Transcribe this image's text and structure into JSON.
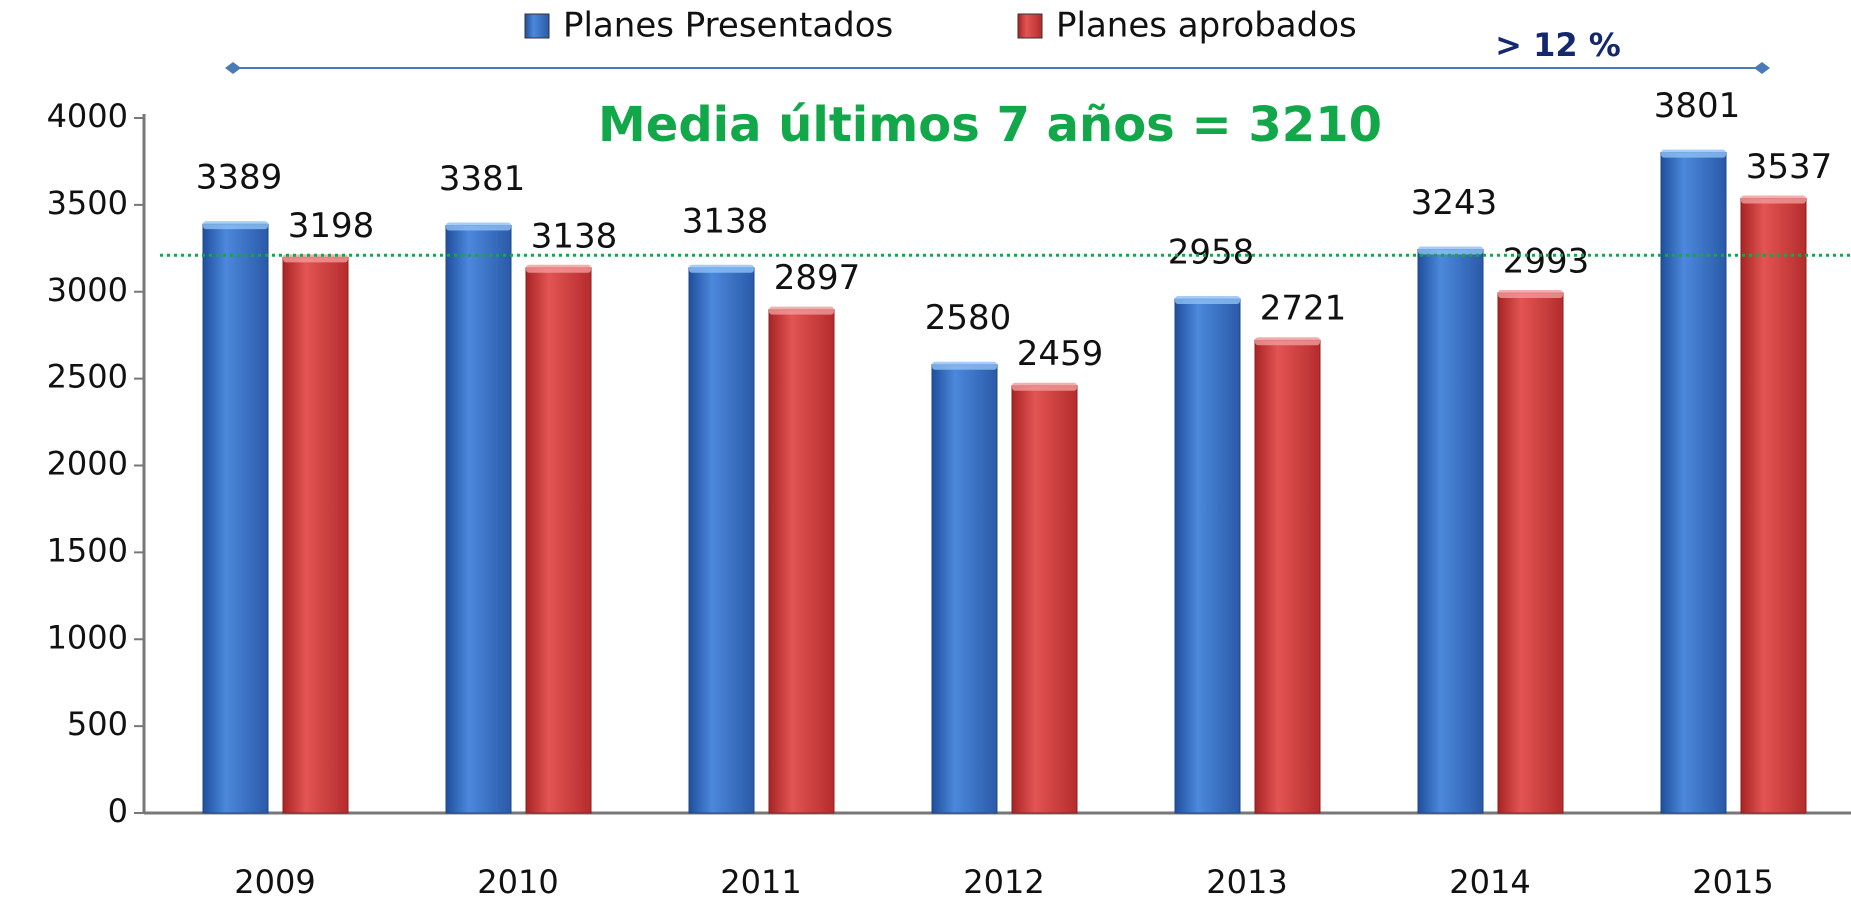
{
  "chart_data": {
    "type": "bar",
    "title": "Media últimos 7 años = 3210",
    "annotation": "> 12 %",
    "categories": [
      "2009",
      "2010",
      "2011",
      "2012",
      "2013",
      "2014",
      "2015"
    ],
    "series": [
      {
        "name": "Planes Presentados",
        "color": "#3b72c8",
        "values": [
          3389,
          3381,
          3138,
          2580,
          2958,
          3243,
          3801
        ]
      },
      {
        "name": "Planes aprobados",
        "color": "#d63c3c",
        "values": [
          3198,
          3138,
          2897,
          2459,
          2721,
          2993,
          3537
        ]
      }
    ],
    "mean_line": 3210,
    "mean_color": "#12a84a",
    "ylim": [
      0,
      4000
    ],
    "yticks": [
      0,
      500,
      1000,
      1500,
      2000,
      2500,
      3000,
      3500,
      4000
    ],
    "legend": "top",
    "grid": false
  }
}
